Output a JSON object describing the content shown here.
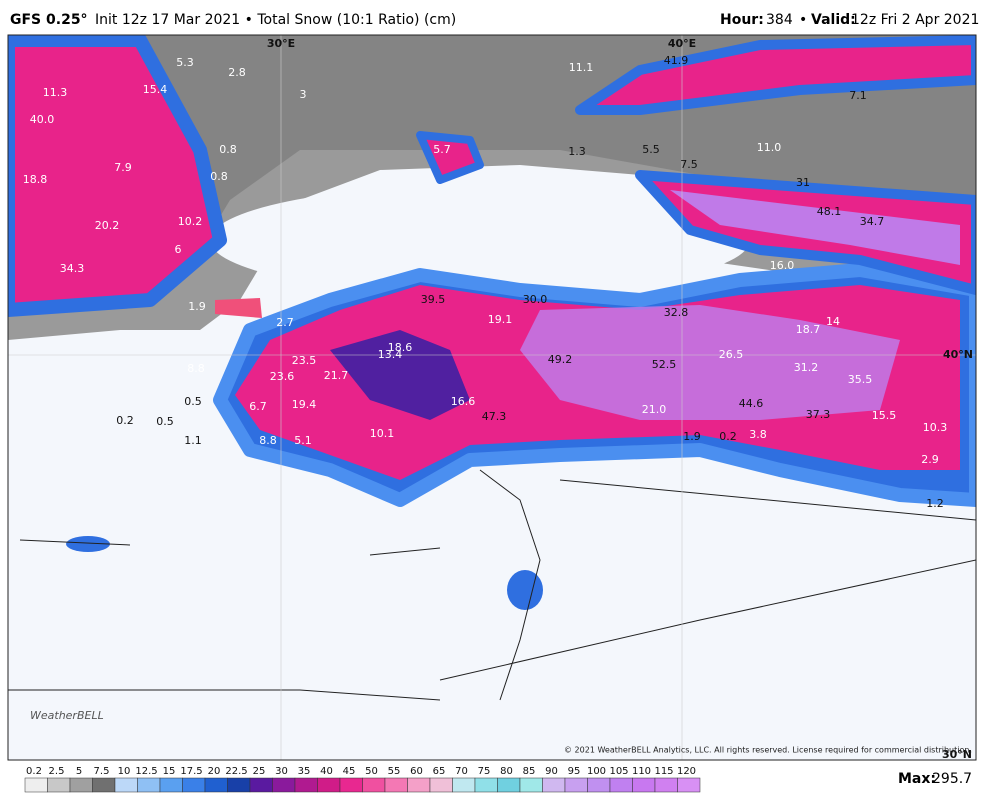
{
  "header": {
    "model": "GFS 0.25°",
    "description": "Init 12z 17 Mar 2021 • Total Snow (10:1 Ratio) (cm)",
    "hour_label": "Hour:",
    "hour": "384",
    "separator": "•",
    "valid_label": "Valid:",
    "valid": "12z Fri 2 Apr 2021"
  },
  "map": {
    "graticule": [
      "30°E",
      "40°E",
      "40°N",
      "30°N"
    ],
    "values": [
      "11.3",
      "40.0",
      "15.4",
      "5.3",
      "2.8",
      "3",
      "0.8",
      "0.8",
      "7.9",
      "18.8",
      "20.2",
      "10.2",
      "6",
      "34.3",
      "1.9",
      "2.7",
      "8.8",
      "0.5",
      "0.2",
      "0.5",
      "1.1",
      "6.7",
      "8.8",
      "5.1",
      "23.5",
      "23.6",
      "19.4",
      "21.7",
      "18.6",
      "13.4",
      "10.1",
      "16.6",
      "47.3",
      "39.5",
      "19.1",
      "30.0",
      "49.2",
      "52.5",
      "21.0",
      "26.5",
      "32.8",
      "44.6",
      "37.3",
      "31.2",
      "35.5",
      "18.7",
      "14",
      "15.5",
      "10.3",
      "2.9",
      "1.2",
      "0.2",
      "3.8",
      "1.9",
      "5.7",
      "11.1",
      "41.9",
      "7.1",
      "11.0",
      "5.5",
      "7.5",
      "1.3",
      "31",
      "48.1",
      "34.7",
      "16.0"
    ]
  },
  "legend": {
    "ticks": [
      "0.2",
      "2.5",
      "5",
      "7.5",
      "10",
      "12.5",
      "15",
      "17.5",
      "20",
      "22.5",
      "25",
      "30",
      "35",
      "40",
      "45",
      "50",
      "55",
      "60",
      "65",
      "70",
      "75",
      "80",
      "85",
      "90",
      "95",
      "100",
      "105",
      "110",
      "115",
      "120"
    ],
    "max_label": "Max:",
    "max": "295.7"
  },
  "footer": {
    "copyright": "© 2021 WeatherBELL Analytics, LLC. All rights reserved. License required for commercial distribution.",
    "logo": "WeatherBELL"
  }
}
